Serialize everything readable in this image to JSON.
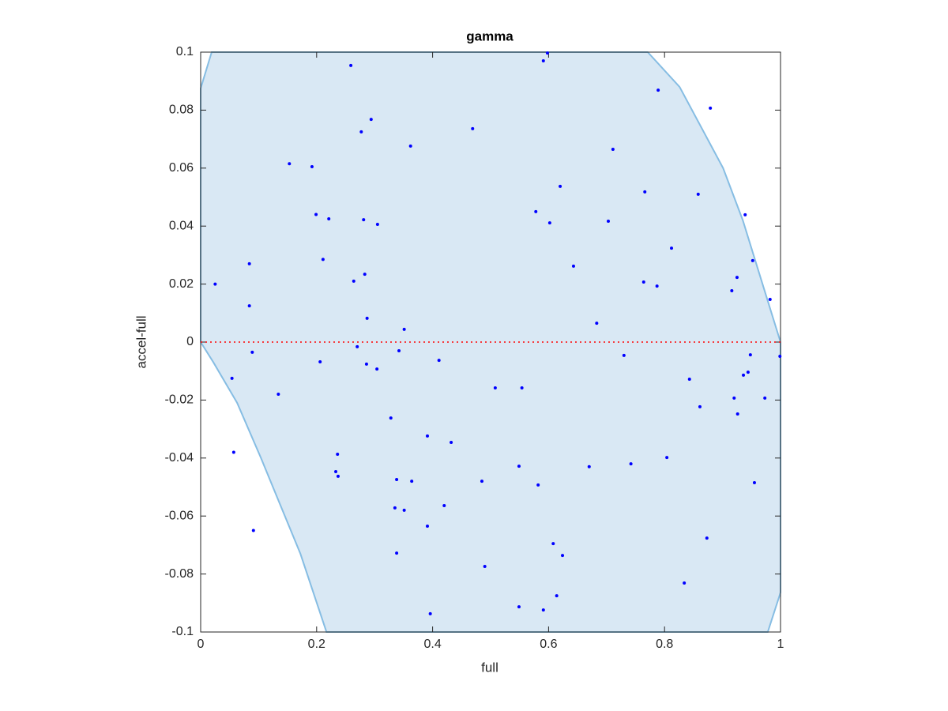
{
  "chart_data": {
    "type": "scatter",
    "title": "gamma",
    "x_label": "full",
    "y_label": "accel-full",
    "xlim": [
      0,
      1
    ],
    "ylim": [
      -0.1,
      0.1
    ],
    "xticks": [
      0,
      0.2,
      0.4,
      0.6,
      0.8,
      1
    ],
    "yticks": [
      -0.1,
      -0.08,
      -0.06,
      -0.04,
      -0.02,
      0,
      0.02,
      0.04,
      0.06,
      0.08,
      0.1
    ],
    "color": "#0000ff",
    "x": [
      0.025,
      0.054,
      0.057,
      0.084,
      0.084,
      0.089,
      0.091,
      0.134,
      0.153,
      0.192,
      0.199,
      0.206,
      0.211,
      0.221,
      0.236,
      0.233,
      0.237,
      0.259,
      0.264,
      0.27,
      0.277,
      0.281,
      0.283,
      0.294,
      0.304,
      0.305,
      0.286,
      0.287,
      0.328,
      0.335,
      0.338,
      0.338,
      0.342,
      0.351,
      0.351,
      0.362,
      0.364,
      0.391,
      0.391,
      0.396,
      0.411,
      0.42,
      0.432,
      0.469,
      0.508,
      0.485,
      0.49,
      0.549,
      0.549,
      0.554,
      0.578,
      0.582,
      0.591,
      0.598,
      0.591,
      0.602,
      0.608,
      0.614,
      0.62,
      0.624,
      0.643,
      0.67,
      0.683,
      0.703,
      0.711,
      0.73,
      0.742,
      0.766,
      0.764,
      0.787,
      0.789,
      0.804,
      0.812,
      0.834,
      0.843,
      0.858,
      0.861,
      0.873,
      0.879,
      0.916,
      0.92,
      0.925,
      0.926,
      0.936,
      0.939,
      0.944,
      0.948,
      0.952,
      0.955,
      0.973,
      0.982,
      0.999
    ],
    "values": [
      0.02,
      -0.0125,
      -0.038,
      0.027,
      0.0125,
      -0.0035,
      -0.065,
      -0.018,
      0.0615,
      0.0605,
      0.044,
      -0.0068,
      0.0285,
      0.0425,
      -0.0387,
      -0.0447,
      -0.0463,
      0.0954,
      0.021,
      -0.0016,
      0.0725,
      0.0422,
      0.0234,
      0.0768,
      -0.0093,
      0.0406,
      -0.0076,
      0.0082,
      -0.0262,
      -0.0572,
      -0.0474,
      -0.0728,
      -0.003,
      0.0044,
      -0.058,
      0.0676,
      -0.048,
      -0.0324,
      -0.0635,
      -0.0937,
      -0.0063,
      -0.0564,
      -0.0346,
      0.0736,
      -0.0158,
      -0.048,
      -0.0774,
      -0.0428,
      -0.0913,
      -0.0158,
      0.045,
      -0.0493,
      0.097,
      0.0997,
      -0.0924,
      0.0411,
      -0.0695,
      -0.0875,
      0.0537,
      -0.0736,
      0.0262,
      -0.043,
      0.0065,
      0.0417,
      0.0665,
      -0.0046,
      -0.042,
      0.0518,
      0.0207,
      0.0193,
      0.0869,
      -0.0398,
      0.0324,
      -0.0831,
      -0.0128,
      0.051,
      -0.0223,
      -0.0676,
      0.0807,
      0.0177,
      -0.0193,
      0.0223,
      -0.0248,
      -0.0114,
      0.0439,
      -0.0104,
      -0.0044,
      0.0281,
      -0.0485,
      -0.0193,
      0.0147,
      -0.0049
    ],
    "region": {
      "color": "#d9e8f4",
      "edge_color": "#86bde3",
      "x": [
        0,
        0.019,
        0.771,
        0.826,
        0.901,
        0.935,
        0.969,
        1,
        1,
        0.978,
        0.217,
        0.172,
        0.104,
        0.063,
        0.022,
        0
      ],
      "y": [
        0.0875,
        0.1,
        0.1,
        0.088,
        0.06,
        0.042,
        0.02,
        0,
        -0.0864,
        -0.1,
        -0.1,
        -0.073,
        -0.04,
        -0.021,
        -0.007,
        0
      ]
    },
    "hline": {
      "value": 0,
      "color": "#ff0000"
    }
  }
}
